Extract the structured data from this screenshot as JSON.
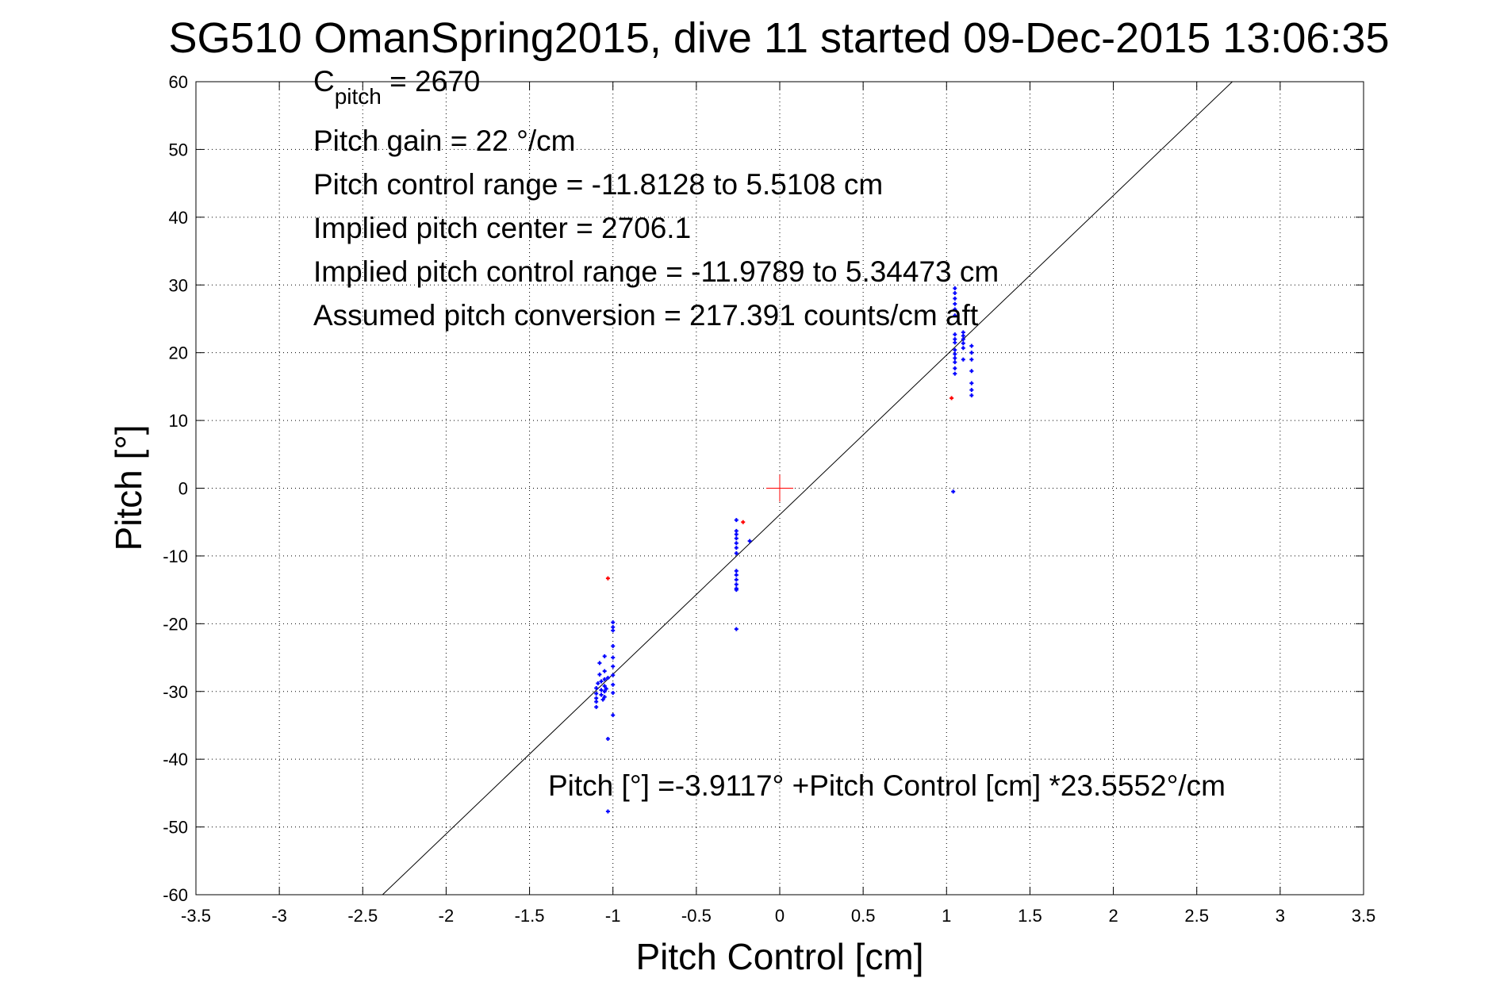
{
  "chart_data": {
    "type": "scatter",
    "title": "SG510 OmanSpring2015, dive 11 started 09-Dec-2015 13:06:35",
    "xlabel": "Pitch Control [cm]",
    "ylabel": "Pitch [°]",
    "xlim": [
      -3.5,
      3.5
    ],
    "ylim": [
      -60,
      60
    ],
    "xticks": [
      -3.5,
      -3,
      -2.5,
      -2,
      -1.5,
      -1,
      -0.5,
      0,
      0.5,
      1,
      1.5,
      2,
      2.5,
      3,
      3.5
    ],
    "xtick_labels": [
      "-3.5",
      "-3",
      "-2.5",
      "-2",
      "-1.5",
      "-1",
      "-0.5",
      "0",
      "0.5",
      "1",
      "1.5",
      "2",
      "2.5",
      "3",
      "3.5"
    ],
    "yticks": [
      60,
      50,
      40,
      30,
      20,
      10,
      0,
      -10,
      -20,
      -30,
      -40,
      -50,
      -60
    ],
    "ytick_labels": [
      "60",
      "50",
      "40",
      "30",
      "20",
      "10",
      "0",
      "-10",
      "-20",
      "-30",
      "-40",
      "-50",
      "-60"
    ],
    "grid": true,
    "annotations": {
      "c_pitch_symbol": "C",
      "c_pitch_sub": "pitch",
      "c_pitch_value": " = 2670",
      "pitch_gain": "Pitch gain = 22 °/cm",
      "pitch_control_range": "Pitch control range = -11.8128 to 5.5108 cm",
      "implied_center": "Implied pitch center = 2706.1",
      "implied_range": "Implied pitch control range = -11.9789 to 5.34473 cm",
      "assumed_conversion": "Assumed pitch conversion = 217.391 counts/cm aft",
      "fit_equation": "Pitch [°] =-3.9117° +Pitch Control [cm] *23.5552°/cm"
    },
    "fit_line": {
      "intercept": -3.9117,
      "slope": 23.5552,
      "color": "#000000"
    },
    "center_marker": {
      "x": 0,
      "y": 0,
      "color": "#ff0000"
    },
    "series": [
      {
        "name": "included",
        "color": "#0000ff",
        "points": [
          [
            -1.08,
            -25.8
          ],
          [
            -1.08,
            -27.5
          ],
          [
            -1.09,
            -28.8
          ],
          [
            -1.1,
            -29.5
          ],
          [
            -1.1,
            -30.3
          ],
          [
            -1.1,
            -31.0
          ],
          [
            -1.1,
            -31.5
          ],
          [
            -1.1,
            -32.3
          ],
          [
            -1.07,
            -28.5
          ],
          [
            -1.07,
            -29.8
          ],
          [
            -1.07,
            -30.5
          ],
          [
            -1.06,
            -31.2
          ],
          [
            -1.05,
            -24.8
          ],
          [
            -1.05,
            -27.0
          ],
          [
            -1.05,
            -28.2
          ],
          [
            -1.05,
            -29.2
          ],
          [
            -1.05,
            -30.0
          ],
          [
            -1.05,
            -30.8
          ],
          [
            -1.04,
            -29.6
          ],
          [
            -1.03,
            -28.0
          ],
          [
            -1.03,
            -37.0
          ],
          [
            -1.03,
            -47.7
          ],
          [
            -1.0,
            -19.8
          ],
          [
            -1.0,
            -20.5
          ],
          [
            -1.0,
            -21.0
          ],
          [
            -1.0,
            -23.3
          ],
          [
            -1.0,
            -25.0
          ],
          [
            -1.0,
            -26.3
          ],
          [
            -1.0,
            -27.6
          ],
          [
            -1.0,
            -29.0
          ],
          [
            -1.0,
            -30.2
          ],
          [
            -1.0,
            -33.5
          ],
          [
            -0.26,
            -4.7
          ],
          [
            -0.26,
            -6.3
          ],
          [
            -0.26,
            -6.8
          ],
          [
            -0.26,
            -7.4
          ],
          [
            -0.26,
            -8.1
          ],
          [
            -0.26,
            -8.8
          ],
          [
            -0.26,
            -9.6
          ],
          [
            -0.26,
            -12.2
          ],
          [
            -0.26,
            -12.8
          ],
          [
            -0.26,
            -13.5
          ],
          [
            -0.26,
            -14.2
          ],
          [
            -0.26,
            -14.8
          ],
          [
            -0.26,
            -15.0
          ],
          [
            -0.26,
            -20.8
          ],
          [
            -0.18,
            -7.8
          ],
          [
            1.05,
            29.5
          ],
          [
            1.05,
            28.8
          ],
          [
            1.05,
            28.0
          ],
          [
            1.05,
            27.2
          ],
          [
            1.05,
            26.4
          ],
          [
            1.05,
            25.5
          ],
          [
            1.05,
            22.7
          ],
          [
            1.05,
            22.0
          ],
          [
            1.05,
            21.5
          ],
          [
            1.05,
            20.4
          ],
          [
            1.05,
            19.8
          ],
          [
            1.05,
            19.2
          ],
          [
            1.05,
            18.6
          ],
          [
            1.05,
            17.7
          ],
          [
            1.05,
            16.9
          ],
          [
            1.04,
            -0.5
          ],
          [
            1.1,
            23.0
          ],
          [
            1.1,
            22.5
          ],
          [
            1.1,
            22.0
          ],
          [
            1.1,
            21.4
          ],
          [
            1.1,
            20.7
          ],
          [
            1.1,
            19.0
          ],
          [
            1.15,
            21.0
          ],
          [
            1.15,
            20.0
          ],
          [
            1.15,
            19.0
          ],
          [
            1.15,
            17.3
          ],
          [
            1.15,
            15.5
          ],
          [
            1.15,
            14.5
          ],
          [
            1.15,
            13.7
          ]
        ]
      },
      {
        "name": "excluded",
        "color": "#ff0000",
        "points": [
          [
            -1.03,
            -13.3
          ],
          [
            -0.22,
            -5.0
          ],
          [
            1.03,
            13.3
          ]
        ]
      }
    ]
  }
}
